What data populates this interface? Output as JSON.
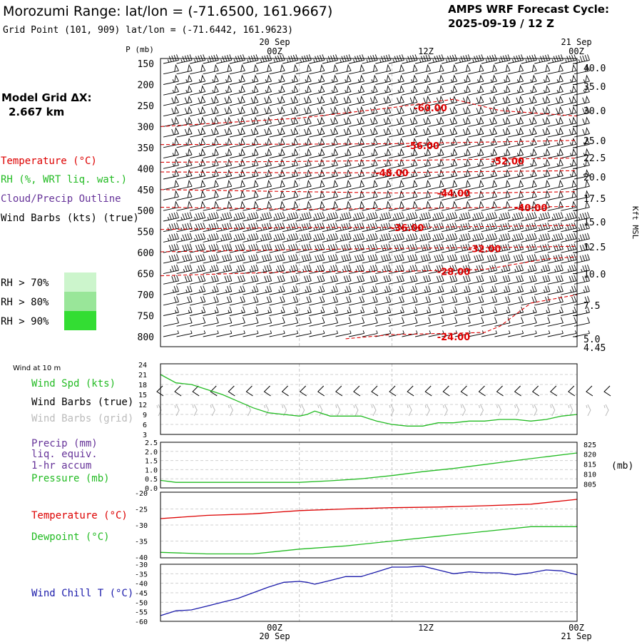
{
  "header": {
    "title": "Morozumi Range:  lat/lon = (-71.6500, 161.9667)",
    "subtitle": "Grid Point (101, 909) lat/lon = (-71.6442, 161.9623)",
    "cycle_label": "AMPS WRF Forecast Cycle:",
    "cycle_value": "2025-09-19 / 12  Z"
  },
  "time_axis": {
    "top_dates": [
      "20 Sep",
      "21 Sep"
    ],
    "labels": [
      "00Z",
      "12Z",
      "00Z"
    ],
    "bottom_dates": [
      "20 Sep",
      "21 Sep"
    ]
  },
  "legend": {
    "model_grid_label": "Model Grid ΔX:",
    "model_grid_value": "2.667 km",
    "temperature": "Temperature (°C)",
    "rh": "RH (%, WRT liq. wat.)",
    "cloud": "Cloud/Precip Outline",
    "wind_barbs": "Wind Barbs (kts) (true)",
    "rh_70": "RH > 70%",
    "rh_80": "RH > 80%",
    "rh_90": "RH > 90%"
  },
  "colors": {
    "temperature": "#dd0000",
    "green": "#22bb22",
    "purple": "#663399",
    "blue": "#1a1aaa",
    "grey": "#bbbbbb",
    "rh70": "#ccf5cc",
    "rh80": "#99e699",
    "rh90": "#33dd33"
  },
  "chart_data": [
    {
      "type": "line",
      "title": "Vertical profile: temperature isotherms and wind barbs",
      "ylabel": "P (mb)",
      "y2label": "Kft MSL",
      "yticks": [
        150,
        200,
        250,
        300,
        350,
        400,
        450,
        500,
        550,
        600,
        650,
        700,
        750,
        800
      ],
      "y2ticks": [
        "40.0",
        "35.0",
        "30.0",
        "25.0",
        "22.5",
        "20.0",
        "17.5",
        "15.0",
        "12.5",
        "10.0",
        "7.5",
        "5.0",
        "4.45"
      ],
      "x_range_hours": [
        -18,
        36
      ],
      "isotherms": [
        {
          "label": "-60.00",
          "label_x": 17,
          "label_p": 255,
          "x": [
            -18,
            0,
            12,
            20,
            26,
            36
          ],
          "p": [
            300,
            280,
            255,
            235,
            262,
            275
          ]
        },
        {
          "label": "-56.00",
          "label_x": 16,
          "label_p": 345,
          "x": [
            -18,
            0,
            12,
            24,
            36
          ],
          "p": [
            343,
            342,
            341,
            337,
            333
          ]
        },
        {
          "label": "-52.00",
          "label_x": 27,
          "label_p": 382,
          "x": [
            -18,
            0,
            12,
            24,
            36
          ],
          "p": [
            385,
            383,
            381,
            378,
            375
          ]
        },
        {
          "label": "-48.00",
          "label_x": 12,
          "label_p": 410,
          "x": [
            -18,
            0,
            12,
            24,
            36
          ],
          "p": [
            408,
            410,
            410,
            407,
            405
          ]
        },
        {
          "label": "-44.00",
          "label_x": 20,
          "label_p": 458,
          "x": [
            -18,
            0,
            12,
            24,
            36
          ],
          "p": [
            450,
            455,
            458,
            458,
            455
          ]
        },
        {
          "label": "-40.00",
          "label_x": 30,
          "label_p": 493,
          "x": [
            -18,
            0,
            12,
            24,
            36
          ],
          "p": [
            492,
            497,
            495,
            493,
            490
          ]
        },
        {
          "label": "-36.00",
          "label_x": 14,
          "label_p": 540,
          "x": [
            -18,
            0,
            12,
            24,
            36
          ],
          "p": [
            545,
            540,
            540,
            538,
            535
          ]
        },
        {
          "label": "-32.00",
          "label_x": 24,
          "label_p": 590,
          "x": [
            -18,
            0,
            12,
            24,
            36
          ],
          "p": [
            598,
            593,
            590,
            588,
            585
          ]
        },
        {
          "label": "-28.00",
          "label_x": 20,
          "label_p": 645,
          "x": [
            -18,
            0,
            12,
            24,
            32,
            36
          ],
          "p": [
            655,
            645,
            645,
            640,
            615,
            610
          ]
        },
        {
          "label": "-24.00",
          "label_x": 20,
          "label_p": 800,
          "x": [
            6,
            12,
            24,
            26,
            30,
            36
          ],
          "p": [
            805,
            795,
            790,
            775,
            720,
            700
          ]
        }
      ],
      "wind_rows": [
        {
          "p": 150,
          "speed_kts": 45
        },
        {
          "p": 175,
          "speed_kts": 50
        },
        {
          "p": 200,
          "speed_kts": 55
        },
        {
          "p": 225,
          "speed_kts": 55
        },
        {
          "p": 250,
          "speed_kts": 60
        },
        {
          "p": 275,
          "speed_kts": 60
        },
        {
          "p": 300,
          "speed_kts": 60
        },
        {
          "p": 325,
          "speed_kts": 60
        },
        {
          "p": 350,
          "speed_kts": 55
        },
        {
          "p": 375,
          "speed_kts": 55
        },
        {
          "p": 400,
          "speed_kts": 55
        },
        {
          "p": 425,
          "speed_kts": 55
        },
        {
          "p": 450,
          "speed_kts": 50
        },
        {
          "p": 475,
          "speed_kts": 50
        },
        {
          "p": 500,
          "speed_kts": 50
        },
        {
          "p": 525,
          "speed_kts": 45
        },
        {
          "p": 550,
          "speed_kts": 45
        },
        {
          "p": 575,
          "speed_kts": 45
        },
        {
          "p": 600,
          "speed_kts": 40
        },
        {
          "p": 625,
          "speed_kts": 40
        },
        {
          "p": 650,
          "speed_kts": 35
        },
        {
          "p": 675,
          "speed_kts": 30
        },
        {
          "p": 700,
          "speed_kts": 25
        },
        {
          "p": 725,
          "speed_kts": 20
        },
        {
          "p": 750,
          "speed_kts": 15
        },
        {
          "p": 775,
          "speed_kts": 10
        },
        {
          "p": 800,
          "speed_kts": 5
        }
      ]
    },
    {
      "type": "line",
      "title": "Wind at 10 m",
      "labels": [
        "Wind Spd (kts)",
        "Wind Barbs (true)",
        "Wind Barbs (grid)"
      ],
      "yticks": [
        3,
        6,
        9,
        12,
        15,
        18,
        21,
        24
      ],
      "ylim": [
        3,
        24
      ],
      "series": [
        {
          "name": "Wind Spd (kts)",
          "x": [
            -18,
            -16,
            -14,
            -12,
            -10,
            -8,
            -6,
            -4,
            -2,
            0,
            1,
            2,
            4,
            6,
            8,
            10,
            12,
            14,
            16,
            18,
            20,
            22,
            24,
            26,
            28,
            30,
            32,
            34,
            36
          ],
          "values": [
            21,
            18.5,
            18,
            16.5,
            15,
            13,
            11,
            9.5,
            9,
            8.5,
            9,
            10,
            8.5,
            8.5,
            8.5,
            7,
            6,
            5.5,
            5.5,
            6.5,
            6.5,
            7,
            7,
            7.5,
            7.5,
            7,
            7.5,
            8.5,
            9
          ]
        }
      ]
    },
    {
      "type": "line",
      "title": "Precip and surface pressure",
      "labels": [
        "Precip (mm)",
        "liq. equiv.",
        "1-hr accum",
        "Pressure (mb)"
      ],
      "yticks": [
        "0.0",
        "0.5",
        "1.0",
        "1.5",
        "2.0",
        "2.5"
      ],
      "ylim": [
        0,
        2.5
      ],
      "y2ticks": [
        805,
        810,
        815,
        820,
        825
      ],
      "y2lim": [
        803,
        826
      ],
      "y2label": "(mb)",
      "series": [
        {
          "name": "Pressure (mb)",
          "x": [
            -18,
            -16,
            -12,
            -8,
            -4,
            0,
            4,
            8,
            12,
            16,
            20,
            24,
            28,
            32,
            36
          ],
          "values": [
            806.8,
            805.8,
            805.8,
            805.8,
            805.8,
            805.8,
            806.6,
            807.6,
            809.2,
            811.2,
            812.8,
            814.8,
            816.8,
            818.7,
            820.6
          ]
        }
      ]
    },
    {
      "type": "line",
      "title": "Temperature and dewpoint",
      "labels": [
        "Temperature (°C)",
        "Dewpoint (°C)"
      ],
      "yticks": [
        -20,
        -25,
        -30,
        -35,
        -40
      ],
      "ylim": [
        -40,
        -20
      ],
      "series": [
        {
          "name": "Temperature (°C)",
          "x": [
            -18,
            -12,
            -6,
            0,
            6,
            12,
            18,
            24,
            30,
            36
          ],
          "values": [
            -28,
            -27,
            -26.5,
            -25.5,
            -25,
            -24.6,
            -24.4,
            -24,
            -23.5,
            -22
          ]
        },
        {
          "name": "Dewpoint (°C)",
          "x": [
            -18,
            -12,
            -6,
            0,
            6,
            12,
            18,
            24,
            30,
            36
          ],
          "values": [
            -38.5,
            -39,
            -39,
            -37.5,
            -36.5,
            -35,
            -33.5,
            -32,
            -30.5,
            -30.5
          ]
        }
      ]
    },
    {
      "type": "line",
      "title": "Wind chill",
      "labels": [
        "Wind Chill T (°C)"
      ],
      "yticks": [
        -30,
        -35,
        -40,
        -45,
        -50,
        -55,
        -60
      ],
      "ylim": [
        -60,
        -30
      ],
      "series": [
        {
          "name": "Wind Chill T (°C)",
          "x": [
            -18,
            -16,
            -14,
            -12,
            -10,
            -8,
            -6,
            -4,
            -2,
            0,
            1,
            2,
            4,
            6,
            8,
            10,
            12,
            14,
            16,
            18,
            20,
            22,
            24,
            26,
            28,
            30,
            32,
            34,
            36
          ],
          "values": [
            -57,
            -54.5,
            -54,
            -52,
            -50,
            -48,
            -45,
            -42,
            -39.5,
            -39,
            -39.5,
            -40.5,
            -38.5,
            -36.5,
            -36.5,
            -34,
            -31.5,
            -31.5,
            -31,
            -33,
            -35,
            -34,
            -34.5,
            -34.5,
            -35.5,
            -34.5,
            -33,
            -33.5,
            -35.5
          ]
        }
      ]
    }
  ]
}
